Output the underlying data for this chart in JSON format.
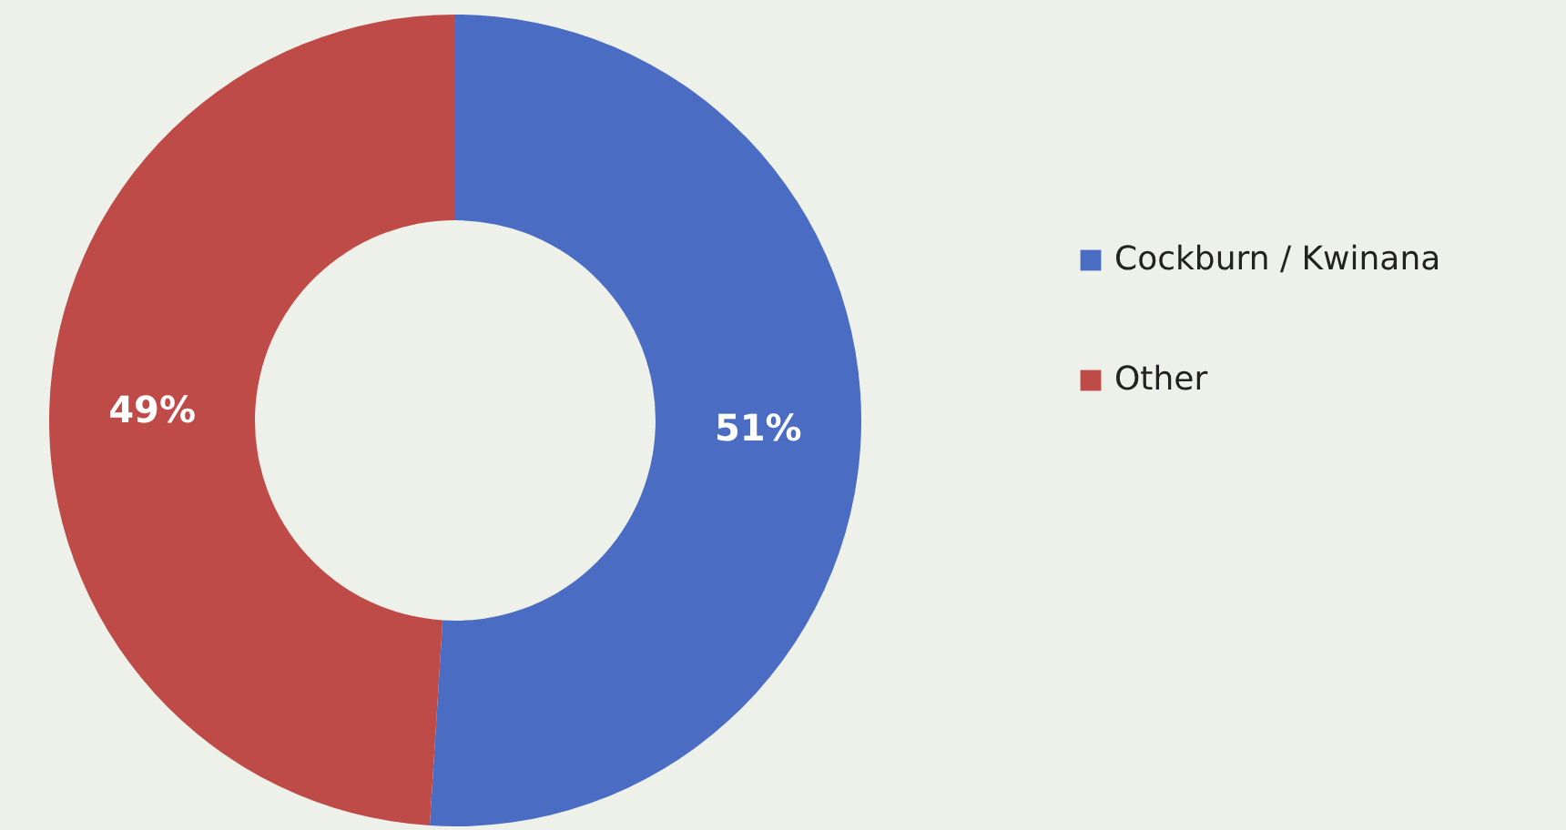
{
  "chart_data": {
    "type": "donut",
    "categories": [
      "Cockburn / Kwinana",
      "Other"
    ],
    "values": [
      51,
      49
    ],
    "colors": [
      "#4a6cc2",
      "#be4b48"
    ],
    "value_labels": [
      "51%",
      "49%"
    ],
    "legend": "right"
  }
}
